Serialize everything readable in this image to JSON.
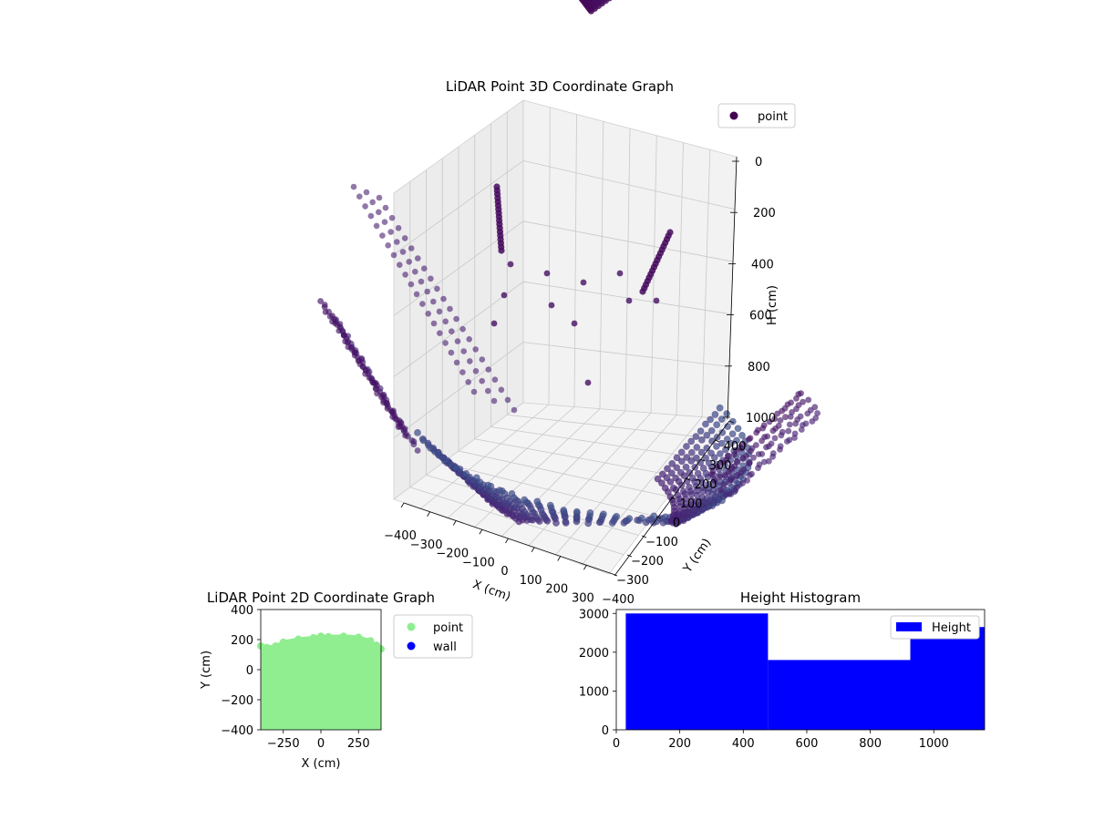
{
  "chart_data": [
    {
      "type": "scatter",
      "projection": "3d",
      "title": "LiDAR Point 3D Coordinate Graph",
      "xlabel": "X (cm)",
      "ylabel": "Y (cm)",
      "zlabel": "H (cm)",
      "xlim": [
        -400,
        400
      ],
      "ylim": [
        -400,
        400
      ],
      "zlim": [
        1000,
        0
      ],
      "x_ticks": [
        "−400",
        "−300",
        "−200",
        "−100",
        "0",
        "100",
        "200",
        "300"
      ],
      "y_ticks": [
        "−400",
        "−300",
        "−200",
        "−100",
        "0",
        "100",
        "200",
        "300",
        "400"
      ],
      "z_ticks": [
        "0",
        "200",
        "400",
        "600",
        "800",
        "1000"
      ],
      "legend": {
        "placement": "top-right",
        "entries": [
          "point"
        ]
      },
      "series": [
        {
          "name": "point",
          "color": "#440154",
          "colormap": "viridis",
          "floor_ring": {
            "points": [
              [
                -400,
                -300,
                1180
              ],
              [
                -360,
                -120,
                1170
              ],
              [
                -300,
                60,
                1160
              ],
              [
                -200,
                180,
                1150
              ],
              [
                -60,
                240,
                1150
              ],
              [
                80,
                240,
                1150
              ],
              [
                220,
                190,
                1150
              ],
              [
                330,
                80,
                1160
              ],
              [
                390,
                -80,
                1170
              ],
              [
                400,
                -260,
                1180
              ]
            ]
          },
          "overhead_structure": {
            "x": [
              -150,
              150
            ],
            "y": [
              150,
              300
            ],
            "h": [
              50,
              520
            ]
          }
        }
      ],
      "grid": true
    },
    {
      "type": "scatter",
      "title": "LiDAR Point 2D Coordinate Graph",
      "xlabel": "X (cm)",
      "ylabel": "Y (cm)",
      "xlim": [
        -400,
        400
      ],
      "ylim": [
        -400,
        400
      ],
      "x_ticks": [
        "−250",
        "0",
        "250"
      ],
      "y_ticks": [
        "−400",
        "−200",
        "0",
        "200",
        "400"
      ],
      "legend": {
        "placement": "outside-right",
        "entries": [
          "point",
          "wall"
        ]
      },
      "series": [
        {
          "name": "point",
          "color": "#90ee90",
          "boundary": [
            [
              -400,
              170
            ],
            [
              -360,
              160
            ],
            [
              -300,
              170
            ],
            [
              -250,
              195
            ],
            [
              -150,
              215
            ],
            [
              -50,
              225
            ],
            [
              0,
              235
            ],
            [
              50,
              232
            ],
            [
              150,
              235
            ],
            [
              250,
              228
            ],
            [
              330,
              205
            ],
            [
              370,
              175
            ],
            [
              400,
              150
            ]
          ],
          "fill_to": -400
        },
        {
          "name": "wall",
          "color": "#0000ff",
          "x": [],
          "y": []
        }
      ]
    },
    {
      "type": "bar",
      "histogram": true,
      "title": "Height Histogram",
      "xlim": [
        0,
        1160
      ],
      "ylim": [
        0,
        3100
      ],
      "x_ticks": [
        "0",
        "200",
        "400",
        "600",
        "800",
        "1000"
      ],
      "y_ticks": [
        "0",
        "1000",
        "2000",
        "3000"
      ],
      "legend": {
        "placement": "top-right",
        "entries": [
          "Height"
        ]
      },
      "series": [
        {
          "name": "Height",
          "color": "#0000ff",
          "bins": [
            [
              30,
              478,
              3000
            ],
            [
              478,
              926,
              1800
            ],
            [
              926,
              1160,
              2650
            ]
          ]
        }
      ]
    }
  ]
}
